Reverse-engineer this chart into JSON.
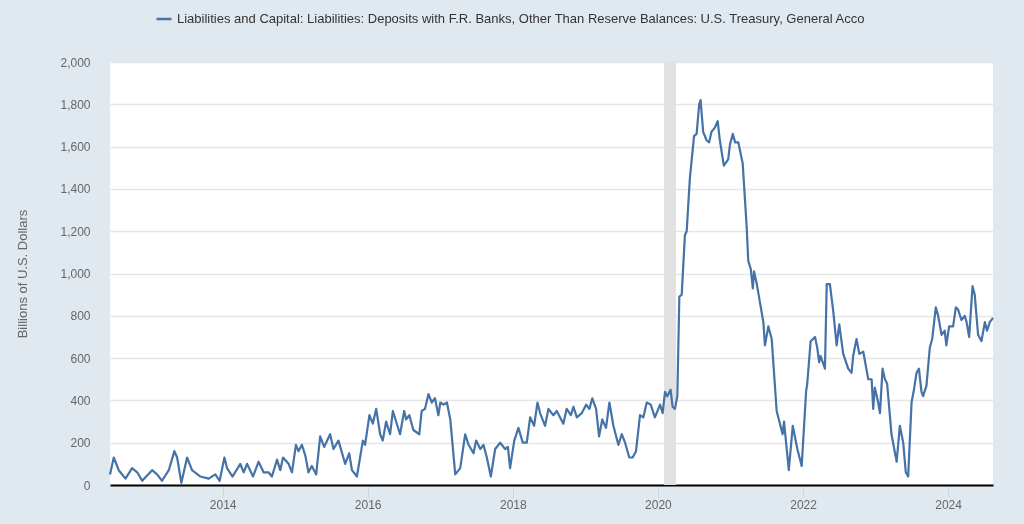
{
  "chart_data": {
    "type": "line",
    "ylabel": "Billions of U.S. Dollars",
    "x": [
      "2012-06-13",
      "2012-07-02",
      "2012-07-27",
      "2012-08-30",
      "2012-10-02",
      "2012-10-28",
      "2012-11-22",
      "2013-01-11",
      "2013-02-05",
      "2013-03-02",
      "2013-04-05",
      "2013-05-03",
      "2013-05-17",
      "2013-06-07",
      "2013-07-06",
      "2013-07-31",
      "2013-09-11",
      "2013-10-23",
      "2013-11-25",
      "2013-12-17",
      "2014-01-10",
      "2014-01-23",
      "2014-02-20",
      "2014-03-31",
      "2014-04-17",
      "2014-05-04",
      "2014-06-03",
      "2014-07-01",
      "2014-07-26",
      "2014-08-20",
      "2014-09-06",
      "2014-10-02",
      "2014-10-18",
      "2014-11-01",
      "2014-11-29",
      "2014-12-16",
      "2015-01-05",
      "2015-01-18",
      "2015-02-04",
      "2015-02-21",
      "2015-03-09",
      "2015-03-26",
      "2015-04-17",
      "2015-05-07",
      "2015-05-27",
      "2015-06-26",
      "2015-07-13",
      "2015-08-07",
      "2015-09-10",
      "2015-09-30",
      "2015-10-14",
      "2015-11-08",
      "2015-12-08",
      "2015-12-19",
      "2016-01-10",
      "2016-01-27",
      "2016-02-13",
      "2016-03-04",
      "2016-03-17",
      "2016-04-03",
      "2016-04-23",
      "2016-05-07",
      "2016-06-12",
      "2016-07-03",
      "2016-07-13",
      "2016-07-29",
      "2016-08-18",
      "2016-09-17",
      "2016-09-29",
      "2016-10-16",
      "2016-11-02",
      "2016-11-19",
      "2016-12-05",
      "2016-12-22",
      "2017-01-01",
      "2017-01-17",
      "2017-02-03",
      "2017-02-20",
      "2017-03-17",
      "2017-04-11",
      "2017-05-06",
      "2017-05-23",
      "2017-06-17",
      "2017-06-30",
      "2017-07-21",
      "2017-08-06",
      "2017-08-23",
      "2017-09-12",
      "2017-10-04",
      "2017-10-29",
      "2017-11-23",
      "2017-12-07",
      "2017-12-18",
      "2018-01-08",
      "2018-01-29",
      "2018-02-20",
      "2018-03-12",
      "2018-03-29",
      "2018-04-18",
      "2018-05-05",
      "2018-05-18",
      "2018-06-12",
      "2018-06-29",
      "2018-07-24",
      "2018-08-10",
      "2018-09-12",
      "2018-09-29",
      "2018-10-20",
      "2018-11-02",
      "2018-11-19",
      "2018-12-14",
      "2019-01-05",
      "2019-01-21",
      "2019-02-05",
      "2019-02-24",
      "2019-03-11",
      "2019-03-27",
      "2019-04-15",
      "2019-05-02",
      "2019-05-22",
      "2019-06-16",
      "2019-07-03",
      "2019-07-20",
      "2019-08-10",
      "2019-08-27",
      "2019-09-13",
      "2019-10-03",
      "2019-10-20",
      "2019-11-06",
      "2019-11-26",
      "2019-12-17",
      "2020-01-12",
      "2020-01-25",
      "2020-02-06",
      "2020-02-17",
      "2020-03-05",
      "2020-03-15",
      "2020-03-27",
      "2020-04-08",
      "2020-04-18",
      "2020-04-30",
      "2020-05-16",
      "2020-05-25",
      "2020-06-10",
      "2020-07-01",
      "2020-07-14",
      "2020-07-27",
      "2020-08-03",
      "2020-08-16",
      "2020-09-02",
      "2020-09-15",
      "2020-09-27",
      "2020-10-14",
      "2020-10-28",
      "2020-11-08",
      "2020-11-28",
      "2020-12-20",
      "2020-12-29",
      "2021-01-12",
      "2021-01-24",
      "2021-02-09",
      "2021-03-03",
      "2021-03-23",
      "2021-03-31",
      "2021-04-13",
      "2021-04-23",
      "2021-04-29",
      "2021-05-13",
      "2021-06-15",
      "2021-06-23",
      "2021-07-10",
      "2021-07-27",
      "2021-08-21",
      "2021-09-20",
      "2021-09-27",
      "2021-10-21",
      "2021-11-10",
      "2021-12-03",
      "2021-12-25",
      "2022-01-16",
      "2022-01-22",
      "2022-02-08",
      "2022-03-02",
      "2022-03-13",
      "2022-03-23",
      "2022-03-30",
      "2022-04-21",
      "2022-04-30",
      "2022-05-16",
      "2022-06-02",
      "2022-06-19",
      "2022-07-02",
      "2022-07-22",
      "2022-08-16",
      "2022-09-02",
      "2022-09-10",
      "2022-09-27",
      "2022-10-11",
      "2022-10-31",
      "2022-11-25",
      "2022-12-12",
      "2022-12-20",
      "2022-12-28",
      "2023-01-14",
      "2023-01-23",
      "2023-02-05",
      "2023-02-17",
      "2023-02-28",
      "2023-03-22",
      "2023-04-03",
      "2023-04-17",
      "2023-05-03",
      "2023-05-20",
      "2023-06-02",
      "2023-06-14",
      "2023-07-01",
      "2023-07-13",
      "2023-07-26",
      "2023-08-07",
      "2023-08-20",
      "2023-08-28",
      "2023-09-14",
      "2023-10-01",
      "2023-10-13",
      "2023-10-31",
      "2023-11-12",
      "2023-11-29",
      "2023-12-15",
      "2023-12-23",
      "2024-01-06",
      "2024-01-26",
      "2024-02-09",
      "2024-02-20",
      "2024-03-08",
      "2024-03-25",
      "2024-04-03",
      "2024-04-16",
      "2024-05-03",
      "2024-05-14",
      "2024-05-31",
      "2024-06-17",
      "2024-07-04",
      "2024-07-15",
      "2024-07-29",
      "2024-08-14"
    ],
    "series": [
      {
        "name": "Liabilities and Capital: Liabilities: Deposits with F.R. Banks, Other Than Reserve Balances: U.S. Treasury, General Acco",
        "color": "#4572a7",
        "values": [
          50,
          130,
          70,
          30,
          80,
          60,
          20,
          70,
          50,
          20,
          70,
          160,
          130,
          10,
          130,
          70,
          40,
          30,
          50,
          20,
          130,
          80,
          40,
          100,
          60,
          100,
          40,
          110,
          60,
          60,
          40,
          120,
          70,
          130,
          100,
          60,
          190,
          160,
          190,
          140,
          60,
          90,
          50,
          230,
          180,
          240,
          170,
          210,
          100,
          150,
          70,
          40,
          210,
          190,
          330,
          290,
          360,
          240,
          210,
          300,
          240,
          350,
          240,
          350,
          310,
          330,
          260,
          240,
          350,
          360,
          430,
          390,
          410,
          330,
          390,
          380,
          390,
          310,
          50,
          80,
          240,
          190,
          150,
          210,
          170,
          190,
          130,
          40,
          170,
          200,
          170,
          180,
          80,
          210,
          270,
          200,
          200,
          320,
          280,
          390,
          340,
          280,
          360,
          330,
          350,
          290,
          360,
          330,
          370,
          320,
          340,
          380,
          360,
          410,
          360,
          230,
          310,
          270,
          390,
          280,
          190,
          240,
          200,
          130,
          130,
          160,
          330,
          320,
          390,
          380,
          320,
          380,
          340,
          440,
          420,
          450,
          370,
          360,
          420,
          890,
          900,
          1180,
          1200,
          1450,
          1650,
          1660,
          1800,
          1820,
          1670,
          1630,
          1620,
          1670,
          1690,
          1720,
          1630,
          1510,
          1540,
          1610,
          1660,
          1620,
          1620,
          1520,
          1220,
          1060,
          1020,
          930,
          1010,
          950,
          770,
          660,
          750,
          690,
          350,
          240,
          300,
          70,
          280,
          170,
          90,
          440,
          480,
          680,
          700,
          650,
          580,
          610,
          550,
          950,
          950,
          820,
          660,
          760,
          620,
          550,
          530,
          610,
          690,
          620,
          630,
          500,
          500,
          360,
          460,
          390,
          340,
          550,
          500,
          480,
          240,
          180,
          110,
          280,
          200,
          60,
          40,
          390,
          450,
          530,
          550,
          440,
          420,
          470,
          650,
          690,
          840,
          800,
          710,
          730,
          660,
          750,
          750,
          840,
          830,
          780,
          800,
          770,
          700,
          940,
          900,
          710,
          680,
          770,
          730,
          770,
          790
        ]
      }
    ],
    "xlim": [
      "2012-06-13",
      "2024-08-14"
    ],
    "xticks": [
      "2014",
      "2016",
      "2018",
      "2020",
      "2022",
      "2024"
    ],
    "ylim": [
      0,
      2000
    ],
    "yticks": [
      0,
      200,
      400,
      600,
      800,
      {
        "value": 1000,
        "label": "1,000"
      },
      {
        "value": 1200,
        "label": "1,200"
      },
      {
        "value": 1400,
        "label": "1,400"
      },
      {
        "value": 1600,
        "label": "1,600"
      },
      {
        "value": 1800,
        "label": "1,800"
      },
      {
        "value": 2000,
        "label": "2,000"
      }
    ],
    "bands": [
      {
        "axis": "x",
        "from": "2020-02-01",
        "to": "2020-04-01",
        "color": "#e1e1e1"
      }
    ],
    "grid": "y",
    "legend": "top"
  }
}
